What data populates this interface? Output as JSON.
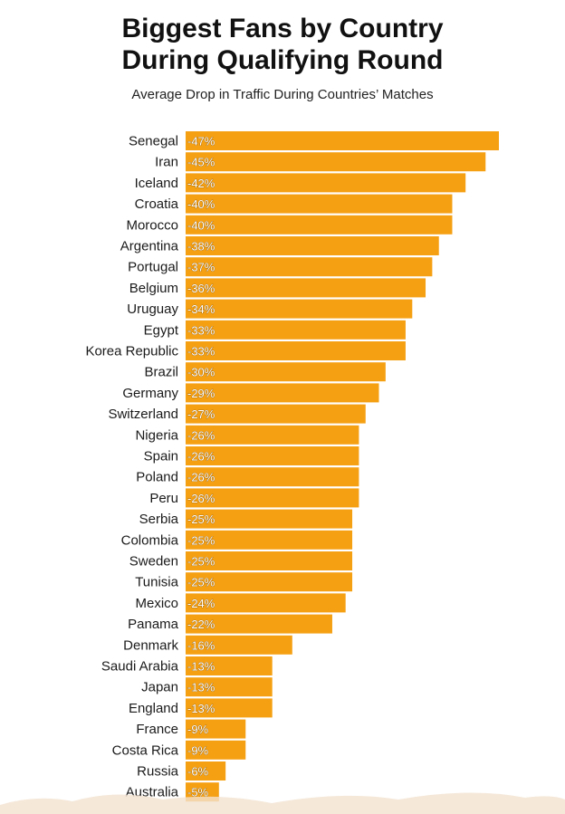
{
  "title_line1": "Biggest Fans by Country",
  "title_line2": "During Qualifying Round",
  "subtitle": "Average Drop in Traffic During Countries’ Matches",
  "colors": {
    "bar": "#F5A013",
    "text": "#111111",
    "background": "#FFFFFF"
  },
  "chart_data": {
    "type": "bar",
    "orientation": "horizontal",
    "title": "Biggest Fans by Country During Qualifying Round",
    "subtitle": "Average Drop in Traffic During Countries’ Matches",
    "xlabel": "",
    "ylabel": "",
    "unit": "%",
    "grid": false,
    "legend": "none",
    "categories": [
      "Senegal",
      "Iran",
      "Iceland",
      "Croatia",
      "Morocco",
      "Argentina",
      "Portugal",
      "Belgium",
      "Uruguay",
      "Egypt",
      "Korea Republic",
      "Brazil",
      "Germany",
      "Switzerland",
      "Nigeria",
      "Spain",
      "Poland",
      "Peru",
      "Serbia",
      "Colombia",
      "Sweden",
      "Tunisia",
      "Mexico",
      "Panama",
      "Denmark",
      "Saudi Arabia",
      "Japan",
      "England",
      "France",
      "Costa Rica",
      "Russia",
      "Australia"
    ],
    "values": [
      -47,
      -45,
      -42,
      -40,
      -40,
      -38,
      -37,
      -36,
      -34,
      -33,
      -33,
      -30,
      -29,
      -27,
      -26,
      -26,
      -26,
      -26,
      -25,
      -25,
      -25,
      -25,
      -24,
      -22,
      -16,
      -13,
      -13,
      -13,
      -9,
      -9,
      -6,
      -5
    ],
    "value_labels": [
      "-47%",
      "-45%",
      "-42%",
      "-40%",
      "-40%",
      "-38%",
      "-37%",
      "-36%",
      "-34%",
      "-33%",
      "-33%",
      "-30%",
      "-29%",
      "-27%",
      "-26%",
      "-26%",
      "-26%",
      "-26%",
      "-25%",
      "-25%",
      "-25%",
      "-25%",
      "-24%",
      "-22%",
      "-16%",
      "-13%",
      "-13%",
      "-13%",
      "-9%",
      "-9%",
      "-6%",
      "-5%"
    ]
  }
}
